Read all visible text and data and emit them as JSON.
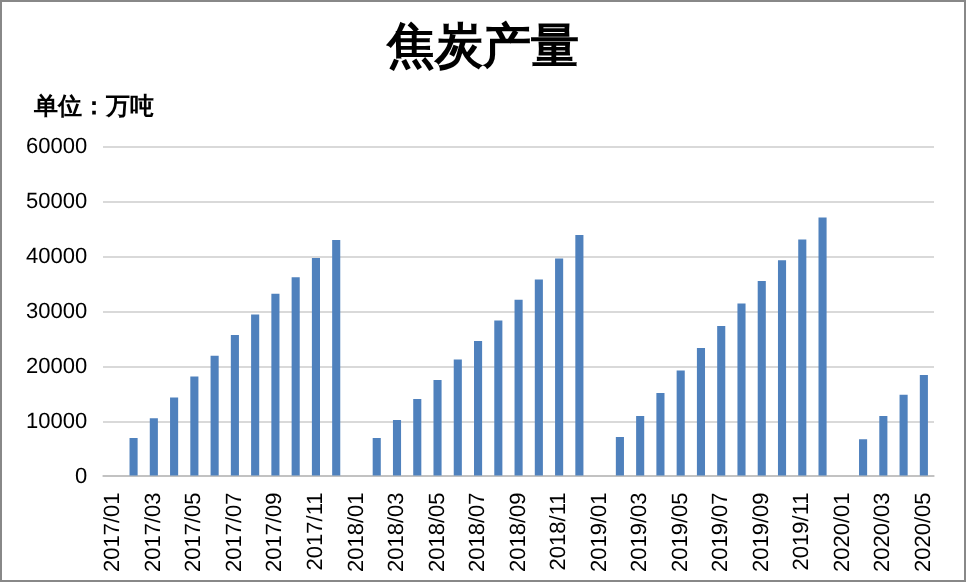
{
  "chart_data": {
    "type": "bar",
    "title": "焦炭产量",
    "annotations": [
      "单位：万吨"
    ],
    "categories": [
      "2017/01",
      null,
      "2017/03",
      null,
      "2017/05",
      null,
      "2017/07",
      null,
      "2017/09",
      null,
      "2017/11",
      null,
      "2018/01",
      null,
      "2018/03",
      null,
      "2018/05",
      null,
      "2018/07",
      null,
      "2018/09",
      null,
      "2018/11",
      null,
      "2019/01",
      null,
      "2019/03",
      null,
      "2019/05",
      null,
      "2019/07",
      null,
      "2019/09",
      null,
      "2019/11",
      null,
      "2020/01",
      null,
      "2020/03",
      null,
      "2020/05"
    ],
    "values": [
      null,
      7000,
      10600,
      14400,
      18200,
      22000,
      25800,
      29500,
      33300,
      36300,
      39800,
      43100,
      null,
      7000,
      10300,
      14100,
      17600,
      21300,
      24700,
      28400,
      32200,
      35900,
      39700,
      44000,
      null,
      7200,
      11000,
      15200,
      19300,
      23400,
      27400,
      31500,
      35600,
      39400,
      43200,
      47200,
      null,
      6800,
      11000,
      14900,
      18500
    ],
    "color": "#4f81bd",
    "ylim": [
      0,
      60000
    ],
    "yticks": [
      0,
      10000,
      20000,
      30000,
      40000,
      50000,
      60000
    ],
    "grid": "y",
    "legend": false
  }
}
